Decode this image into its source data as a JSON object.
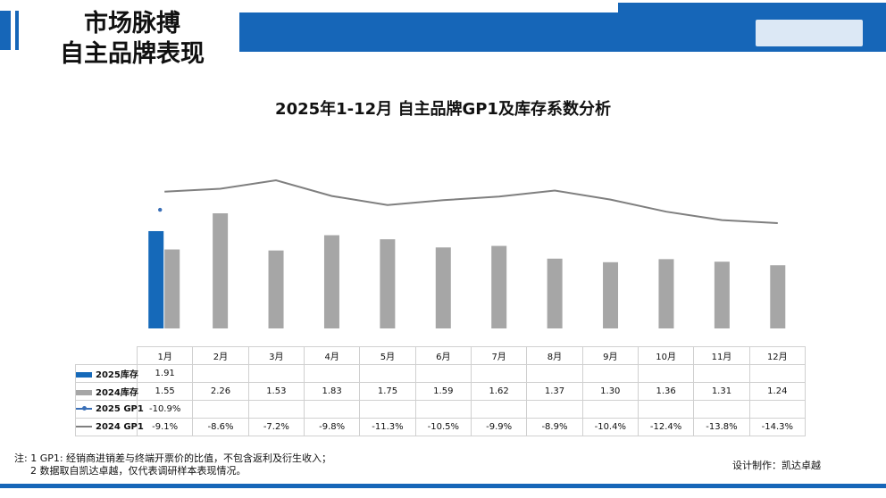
{
  "header": {
    "title_line1": "市场脉搏",
    "title_line2": "自主品牌表现",
    "brand_color": "#1666b8"
  },
  "chart_data": {
    "type": "bar",
    "title": "2025年1-12月 自主品牌GP1及库存系数分析",
    "categories": [
      "1月",
      "2月",
      "3月",
      "4月",
      "5月",
      "6月",
      "7月",
      "8月",
      "9月",
      "10月",
      "11月",
      "12月"
    ],
    "series": [
      {
        "name": "2025库存",
        "kind": "bar",
        "color": "#1569b9",
        "values": [
          1.91,
          null,
          null,
          null,
          null,
          null,
          null,
          null,
          null,
          null,
          null,
          null
        ],
        "labels": [
          "1.91",
          "",
          "",
          "",
          "",
          "",
          "",
          "",
          "",
          "",
          "",
          ""
        ]
      },
      {
        "name": "2024库存",
        "kind": "bar",
        "color": "#a6a6a6",
        "values": [
          1.55,
          2.26,
          1.53,
          1.83,
          1.75,
          1.59,
          1.62,
          1.37,
          1.3,
          1.36,
          1.31,
          1.24
        ],
        "labels": [
          "1.55",
          "2.26",
          "1.53",
          "1.83",
          "1.75",
          "1.59",
          "1.62",
          "1.37",
          "1.30",
          "1.36",
          "1.31",
          "1.24"
        ]
      },
      {
        "name": "2025 GP1",
        "kind": "line",
        "color": "#3a6fb7",
        "values": [
          -10.9,
          null,
          null,
          null,
          null,
          null,
          null,
          null,
          null,
          null,
          null,
          null
        ],
        "labels": [
          "-10.9%",
          "",
          "",
          "",
          "",
          "",
          "",
          "",
          "",
          "",
          "",
          ""
        ]
      },
      {
        "name": "2024 GP1",
        "kind": "line",
        "color": "#7f7f7f",
        "values": [
          -9.1,
          -8.6,
          -7.2,
          -9.8,
          -11.3,
          -10.5,
          -9.9,
          -8.9,
          -10.4,
          -12.4,
          -13.8,
          -14.3
        ],
        "labels": [
          "-9.1%",
          "-8.6%",
          "-7.2%",
          "-9.8%",
          "-11.3%",
          "-10.5%",
          "-9.9%",
          "-8.9%",
          "-10.4%",
          "-12.4%",
          "-13.8%",
          "-14.3%"
        ]
      }
    ],
    "legend_placement": "data-table",
    "grid": false
  },
  "notes": {
    "line1": "注: 1 GP1: 经销商进销差与终端开票价的比值，不包含返利及衍生收入；",
    "line2": "2 数据取自凯达卓越，仅代表调研样本表现情况。"
  },
  "credit": "设计制作：凯达卓越"
}
